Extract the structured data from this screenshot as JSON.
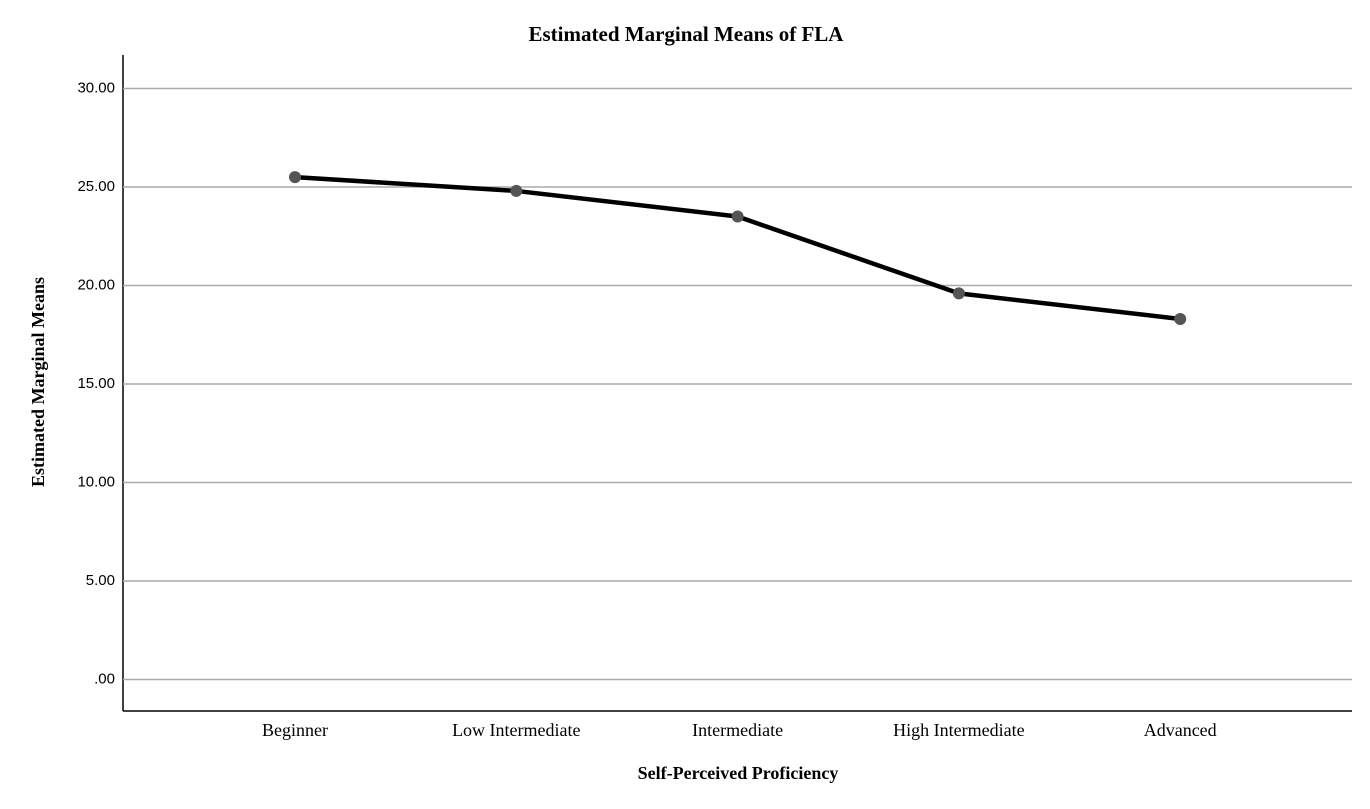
{
  "chart_data": {
    "type": "line",
    "title": "Estimated Marginal Means of FLA",
    "x_label": "Self-Perceived Proficiency",
    "y_label": "Estimated Marginal Means",
    "categories": [
      "Beginner",
      "Low Intermediate",
      "Intermediate",
      "High Intermediate",
      "Advanced"
    ],
    "series": [
      {
        "name": "FLA",
        "color": "#000000",
        "marker_color": "#555555",
        "values": [
          25.5,
          24.8,
          23.5,
          19.6,
          18.3
        ]
      }
    ],
    "ylim": [
      -1.6,
      31.7
    ],
    "yticks": [
      {
        "value": 0,
        "label": ".00"
      },
      {
        "value": 5,
        "label": "5.00"
      },
      {
        "value": 10,
        "label": "10.00"
      },
      {
        "value": 15,
        "label": "15.00"
      },
      {
        "value": 20,
        "label": "20.00"
      },
      {
        "value": 25,
        "label": "25.00"
      },
      {
        "value": 30,
        "label": "30.00"
      }
    ],
    "grid": true
  }
}
